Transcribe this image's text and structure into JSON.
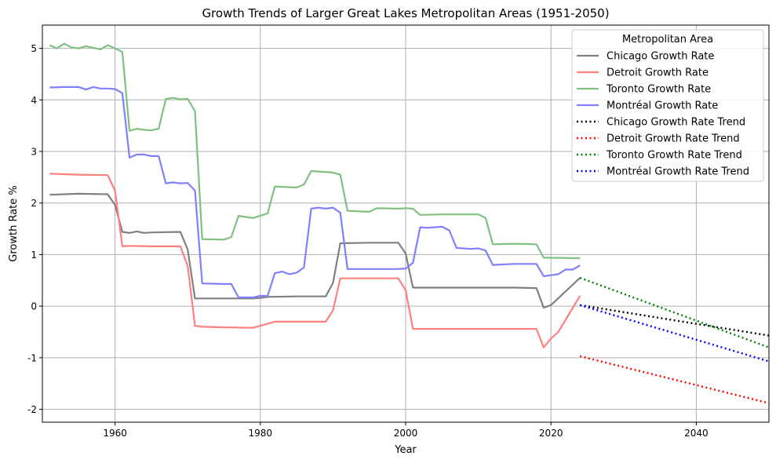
{
  "chart_data": {
    "type": "line",
    "title": "Growth Trends of Larger Great Lakes Metropolitan Areas (1951-2050)",
    "xlabel": "Year",
    "ylabel": "Growth Rate %",
    "xlim": [
      1950,
      2050
    ],
    "ylim": [
      -2.25,
      5.45
    ],
    "xticks": [
      1960,
      1980,
      2000,
      2020,
      2040
    ],
    "yticks": [
      -2,
      -1,
      0,
      1,
      2,
      3,
      4,
      5
    ],
    "grid": true,
    "legend": {
      "title": "Metropolitan Area",
      "placement": "upper right"
    },
    "series": [
      {
        "name": "Chicago Growth Rate",
        "color": "#808080",
        "style": "solid",
        "x": [
          1951,
          1955,
          1959,
          1960,
          1961,
          1962,
          1963,
          1964,
          1965,
          1969,
          1970,
          1971,
          1972,
          1975,
          1979,
          1980,
          1981,
          1985,
          1989,
          1990,
          1991,
          1995,
          1999,
          2000,
          2001,
          2005,
          2010,
          2015,
          2018,
          2019,
          2020,
          2024
        ],
        "y": [
          2.16,
          2.18,
          2.17,
          1.96,
          1.44,
          1.42,
          1.45,
          1.42,
          1.43,
          1.44,
          1.1,
          0.15,
          0.15,
          0.15,
          0.15,
          0.16,
          0.18,
          0.19,
          0.19,
          0.45,
          1.22,
          1.23,
          1.23,
          1.02,
          0.36,
          0.36,
          0.36,
          0.36,
          0.35,
          -0.03,
          0.02,
          0.55
        ]
      },
      {
        "name": "Detroit Growth Rate",
        "color": "#ff8080",
        "style": "solid",
        "x": [
          1951,
          1955,
          1959,
          1960,
          1961,
          1962,
          1965,
          1969,
          1970,
          1971,
          1972,
          1975,
          1979,
          1980,
          1982,
          1984,
          1985,
          1989,
          1990,
          1991,
          1995,
          1999,
          2000,
          2001,
          2005,
          2010,
          2015,
          2018,
          2019,
          2020,
          2021,
          2024
        ],
        "y": [
          2.57,
          2.55,
          2.54,
          2.24,
          1.16,
          1.17,
          1.16,
          1.16,
          0.78,
          -0.38,
          -0.4,
          -0.41,
          -0.42,
          -0.38,
          -0.3,
          -0.3,
          -0.3,
          -0.3,
          -0.08,
          0.54,
          0.54,
          0.54,
          0.31,
          -0.44,
          -0.44,
          -0.44,
          -0.44,
          -0.44,
          -0.8,
          -0.63,
          -0.5,
          0.2
        ]
      },
      {
        "name": "Toronto Growth Rate",
        "color": "#80c080",
        "style": "solid",
        "x": [
          1951,
          1952,
          1953,
          1954,
          1955,
          1956,
          1958,
          1959,
          1960,
          1961,
          1962,
          1963,
          1964,
          1965,
          1966,
          1967,
          1968,
          1969,
          1970,
          1971,
          1972,
          1975,
          1976,
          1977,
          1979,
          1981,
          1982,
          1985,
          1986,
          1987,
          1990,
          1991,
          1992,
          1995,
          1996,
          1999,
          2000,
          2001,
          2002,
          2005,
          2010,
          2011,
          2012,
          2015,
          2018,
          2019,
          2024
        ],
        "y": [
          5.06,
          5.0,
          5.09,
          5.02,
          5.0,
          5.04,
          4.98,
          5.06,
          5.0,
          4.93,
          3.4,
          3.44,
          3.42,
          3.41,
          3.44,
          4.02,
          4.04,
          4.01,
          4.02,
          3.78,
          1.3,
          1.29,
          1.34,
          1.75,
          1.71,
          1.8,
          2.32,
          2.3,
          2.36,
          2.62,
          2.59,
          2.55,
          1.85,
          1.83,
          1.9,
          1.89,
          1.9,
          1.89,
          1.77,
          1.78,
          1.78,
          1.71,
          1.2,
          1.21,
          1.2,
          0.94,
          0.93
        ]
      },
      {
        "name": "Montréal Growth Rate",
        "color": "#8080ff",
        "style": "solid",
        "x": [
          1951,
          1953,
          1955,
          1956,
          1957,
          1958,
          1959,
          1960,
          1961,
          1962,
          1963,
          1964,
          1965,
          1966,
          1967,
          1968,
          1969,
          1970,
          1971,
          1972,
          1975,
          1976,
          1977,
          1979,
          1980,
          1981,
          1982,
          1983,
          1984,
          1985,
          1986,
          1987,
          1988,
          1989,
          1990,
          1991,
          1992,
          1995,
          1999,
          2000,
          2001,
          2002,
          2003,
          2005,
          2006,
          2007,
          2009,
          2010,
          2011,
          2012,
          2015,
          2018,
          2019,
          2020,
          2021,
          2022,
          2023,
          2024
        ],
        "y": [
          4.24,
          4.25,
          4.25,
          4.2,
          4.25,
          4.22,
          4.22,
          4.21,
          4.13,
          2.88,
          2.94,
          2.94,
          2.91,
          2.91,
          2.38,
          2.4,
          2.38,
          2.39,
          2.24,
          0.44,
          0.43,
          0.43,
          0.17,
          0.17,
          0.2,
          0.2,
          0.64,
          0.67,
          0.62,
          0.65,
          0.75,
          1.89,
          1.91,
          1.89,
          1.91,
          1.81,
          0.72,
          0.72,
          0.72,
          0.73,
          0.84,
          1.53,
          1.52,
          1.54,
          1.47,
          1.13,
          1.11,
          1.12,
          1.08,
          0.8,
          0.82,
          0.82,
          0.58,
          0.6,
          0.62,
          0.71,
          0.71,
          0.79
        ]
      },
      {
        "name": "Chicago Growth Rate Trend",
        "color": "#000000",
        "style": "dotted",
        "x": [
          2024,
          2050
        ],
        "y": [
          0.02,
          -0.57
        ]
      },
      {
        "name": "Detroit Growth Rate Trend",
        "color": "#ff0000",
        "style": "dotted",
        "x": [
          2024,
          2050
        ],
        "y": [
          -0.97,
          -1.88
        ]
      },
      {
        "name": "Toronto Growth Rate Trend",
        "color": "#008000",
        "style": "dotted",
        "x": [
          2024,
          2050
        ],
        "y": [
          0.55,
          -0.8
        ]
      },
      {
        "name": "Montréal Growth Rate Trend",
        "color": "#0000ff",
        "style": "dotted",
        "x": [
          2024,
          2050
        ],
        "y": [
          0.02,
          -1.07
        ]
      }
    ]
  }
}
